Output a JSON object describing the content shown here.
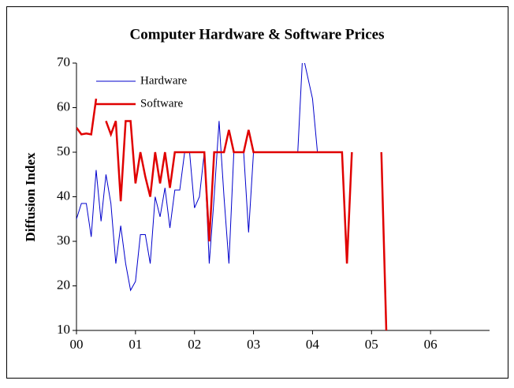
{
  "chart_data": {
    "type": "line",
    "title": "Computer Hardware & Software Prices",
    "y_label": "Diffusion Index",
    "x": [
      0,
      1,
      2,
      3,
      4,
      5,
      6,
      7,
      8,
      9,
      10,
      11,
      12,
      13,
      14,
      15,
      16,
      17,
      18,
      19,
      20,
      21,
      22,
      23,
      24,
      25,
      26,
      27,
      28,
      29,
      30,
      31,
      32,
      33,
      34,
      35,
      36,
      37,
      38,
      39,
      40,
      41,
      42,
      43,
      44,
      45,
      46,
      47,
      48,
      49,
      50,
      51,
      52,
      53,
      54,
      55,
      56,
      57,
      58,
      59,
      60,
      61,
      62,
      63
    ],
    "xlim": [
      0,
      84
    ],
    "xticks": [
      {
        "value": 0,
        "label": "00"
      },
      {
        "value": 12,
        "label": "01"
      },
      {
        "value": 24,
        "label": "02"
      },
      {
        "value": 36,
        "label": "03"
      },
      {
        "value": 48,
        "label": "04"
      },
      {
        "value": 60,
        "label": "05"
      },
      {
        "value": 72,
        "label": "06"
      }
    ],
    "ylim": [
      10,
      70
    ],
    "yticks": [
      10,
      20,
      30,
      40,
      50,
      60,
      70
    ],
    "legend": "upper left",
    "series": [
      {
        "name": "Hardware",
        "color": "#0000cc",
        "width": 1,
        "values": [
          35,
          38.5,
          38.5,
          31,
          46,
          34.5,
          45,
          38.5,
          25,
          33.5,
          25,
          19,
          21,
          31.5,
          31.5,
          25,
          40,
          35.5,
          42,
          33,
          41.5,
          41.5,
          50,
          50,
          37.5,
          40,
          50,
          25,
          40,
          57,
          40,
          25,
          50,
          50,
          50,
          32,
          50,
          50,
          50,
          50,
          50,
          50,
          50,
          50,
          50,
          50,
          72,
          67,
          62,
          50,
          null,
          null,
          null,
          null,
          null,
          null,
          null,
          null,
          null,
          null,
          null,
          null,
          null,
          null
        ]
      },
      {
        "name": "Software",
        "color": "#e00000",
        "width": 2.5,
        "values": [
          55.5,
          54,
          54.2,
          54,
          62,
          null,
          57,
          54,
          57,
          39,
          57,
          57,
          43,
          50,
          44.5,
          40,
          50,
          43,
          50,
          42,
          50,
          50,
          50,
          50,
          50,
          50,
          50,
          30,
          50,
          50,
          50,
          55,
          50,
          50,
          50,
          55,
          50,
          50,
          50,
          50,
          50,
          50,
          50,
          50,
          50,
          50,
          50,
          50,
          50,
          50,
          50,
          50,
          50,
          50,
          50,
          25,
          50,
          null,
          null,
          null,
          null,
          null,
          50,
          10
        ]
      }
    ]
  }
}
